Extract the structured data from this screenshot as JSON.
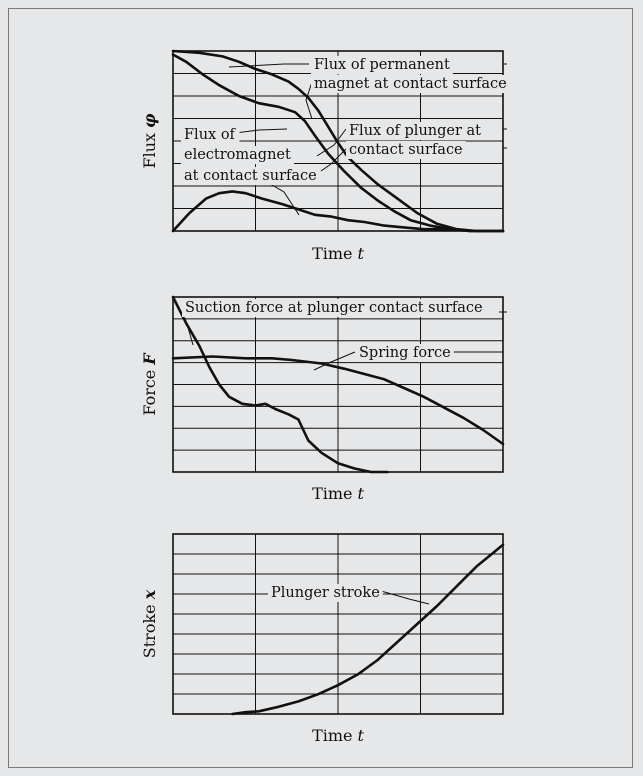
{
  "chart_data": [
    {
      "type": "line",
      "id": "flux",
      "xlabel": "Time",
      "xsymbol": "t",
      "ylabel": "Flux",
      "ysymbol": "φ",
      "xlim": [
        0,
        100
      ],
      "ylim": [
        0,
        100
      ],
      "grid": true,
      "series": [
        {
          "name": "Flux of permanent magnet at contact surface",
          "label_lines": [
            "Flux of permanent",
            "magnet at contact surface"
          ],
          "points": [
            [
              0,
              100
            ],
            [
              8,
              99
            ],
            [
              15,
              97
            ],
            [
              20,
              94
            ],
            [
              25,
              90
            ],
            [
              30,
              87
            ],
            [
              35,
              83
            ],
            [
              38,
              79
            ],
            [
              41,
              74
            ],
            [
              44,
              67
            ],
            [
              47,
              58
            ],
            [
              50,
              49
            ],
            [
              53,
              41
            ],
            [
              57,
              34
            ],
            [
              62,
              26
            ],
            [
              68,
              18
            ],
            [
              74,
              10
            ],
            [
              80,
              4
            ],
            [
              86,
              1
            ],
            [
              92,
              0
            ],
            [
              100,
              0
            ]
          ]
        },
        {
          "name": "Flux of plunger at contact surface",
          "label_lines": [
            "Flux of plunger at",
            "contact surface"
          ],
          "points": [
            [
              0,
              98
            ],
            [
              4,
              94
            ],
            [
              9,
              87
            ],
            [
              14,
              81
            ],
            [
              20,
              75
            ],
            [
              26,
              71
            ],
            [
              32,
              69
            ],
            [
              37,
              66
            ],
            [
              40,
              61
            ],
            [
              43,
              53
            ],
            [
              47,
              43
            ],
            [
              52,
              33
            ],
            [
              57,
              24
            ],
            [
              62,
              17
            ],
            [
              67,
              11
            ],
            [
              72,
              6
            ],
            [
              78,
              3
            ],
            [
              84,
              1
            ],
            [
              90,
              0
            ],
            [
              100,
              0
            ]
          ]
        },
        {
          "name": "Flux of electromagnet at contact surface",
          "label_lines": [
            "Flux of",
            "electromagnet",
            "at contact surface"
          ],
          "points": [
            [
              0,
              0
            ],
            [
              5,
              10
            ],
            [
              10,
              18
            ],
            [
              14,
              21
            ],
            [
              18,
              22
            ],
            [
              22,
              21
            ],
            [
              27,
              18
            ],
            [
              33,
              15
            ],
            [
              38,
              12
            ],
            [
              43,
              9
            ],
            [
              48,
              8
            ],
            [
              53,
              6
            ],
            [
              58,
              5
            ],
            [
              64,
              3
            ],
            [
              70,
              2
            ],
            [
              76,
              1
            ],
            [
              83,
              1
            ],
            [
              90,
              0
            ],
            [
              100,
              0
            ]
          ]
        }
      ]
    },
    {
      "type": "line",
      "id": "force",
      "xlabel": "Time",
      "xsymbol": "t",
      "ylabel": "Force",
      "ysymbol": "F",
      "xlim": [
        0,
        100
      ],
      "ylim": [
        0,
        100
      ],
      "grid": true,
      "series": [
        {
          "name": "Suction force at plunger contact surface",
          "label_lines": [
            "Suction force at plunger contact surface"
          ],
          "points": [
            [
              0,
              100
            ],
            [
              4,
              85
            ],
            [
              8,
              72
            ],
            [
              11,
              60
            ],
            [
              14,
              50
            ],
            [
              17,
              43
            ],
            [
              21,
              39
            ],
            [
              25,
              38
            ],
            [
              28,
              39
            ],
            [
              31,
              36
            ],
            [
              35,
              33
            ],
            [
              38,
              30
            ],
            [
              41,
              18
            ],
            [
              45,
              11
            ],
            [
              50,
              5
            ],
            [
              55,
              2
            ],
            [
              60,
              0
            ],
            [
              65,
              0
            ]
          ]
        },
        {
          "name": "Spring force",
          "label_lines": [
            "Spring force"
          ],
          "points": [
            [
              0,
              65
            ],
            [
              12,
              66
            ],
            [
              22,
              65
            ],
            [
              30,
              65
            ],
            [
              36,
              64
            ],
            [
              45,
              62
            ],
            [
              52,
              59
            ],
            [
              58,
              56
            ],
            [
              64,
              53
            ],
            [
              70,
              48
            ],
            [
              76,
              43
            ],
            [
              82,
              37
            ],
            [
              88,
              31
            ],
            [
              94,
              24
            ],
            [
              100,
              16
            ]
          ]
        }
      ]
    },
    {
      "type": "line",
      "id": "stroke",
      "xlabel": "Time",
      "xsymbol": "t",
      "ylabel": "Stroke",
      "ysymbol": "x",
      "xlim": [
        0,
        100
      ],
      "ylim": [
        0,
        100
      ],
      "grid": true,
      "series": [
        {
          "name": "Plunger stroke",
          "label_lines": [
            "Plunger stroke"
          ],
          "points": [
            [
              18,
              0
            ],
            [
              22,
              1
            ],
            [
              26,
              1.5
            ],
            [
              32,
              4
            ],
            [
              38,
              7
            ],
            [
              44,
              11
            ],
            [
              50,
              16
            ],
            [
              56,
              22
            ],
            [
              62,
              30
            ],
            [
              68,
              40
            ],
            [
              74,
              50
            ],
            [
              80,
              60
            ],
            [
              86,
              71
            ],
            [
              92,
              82
            ],
            [
              96,
              88
            ],
            [
              100,
              94
            ]
          ]
        }
      ]
    }
  ]
}
